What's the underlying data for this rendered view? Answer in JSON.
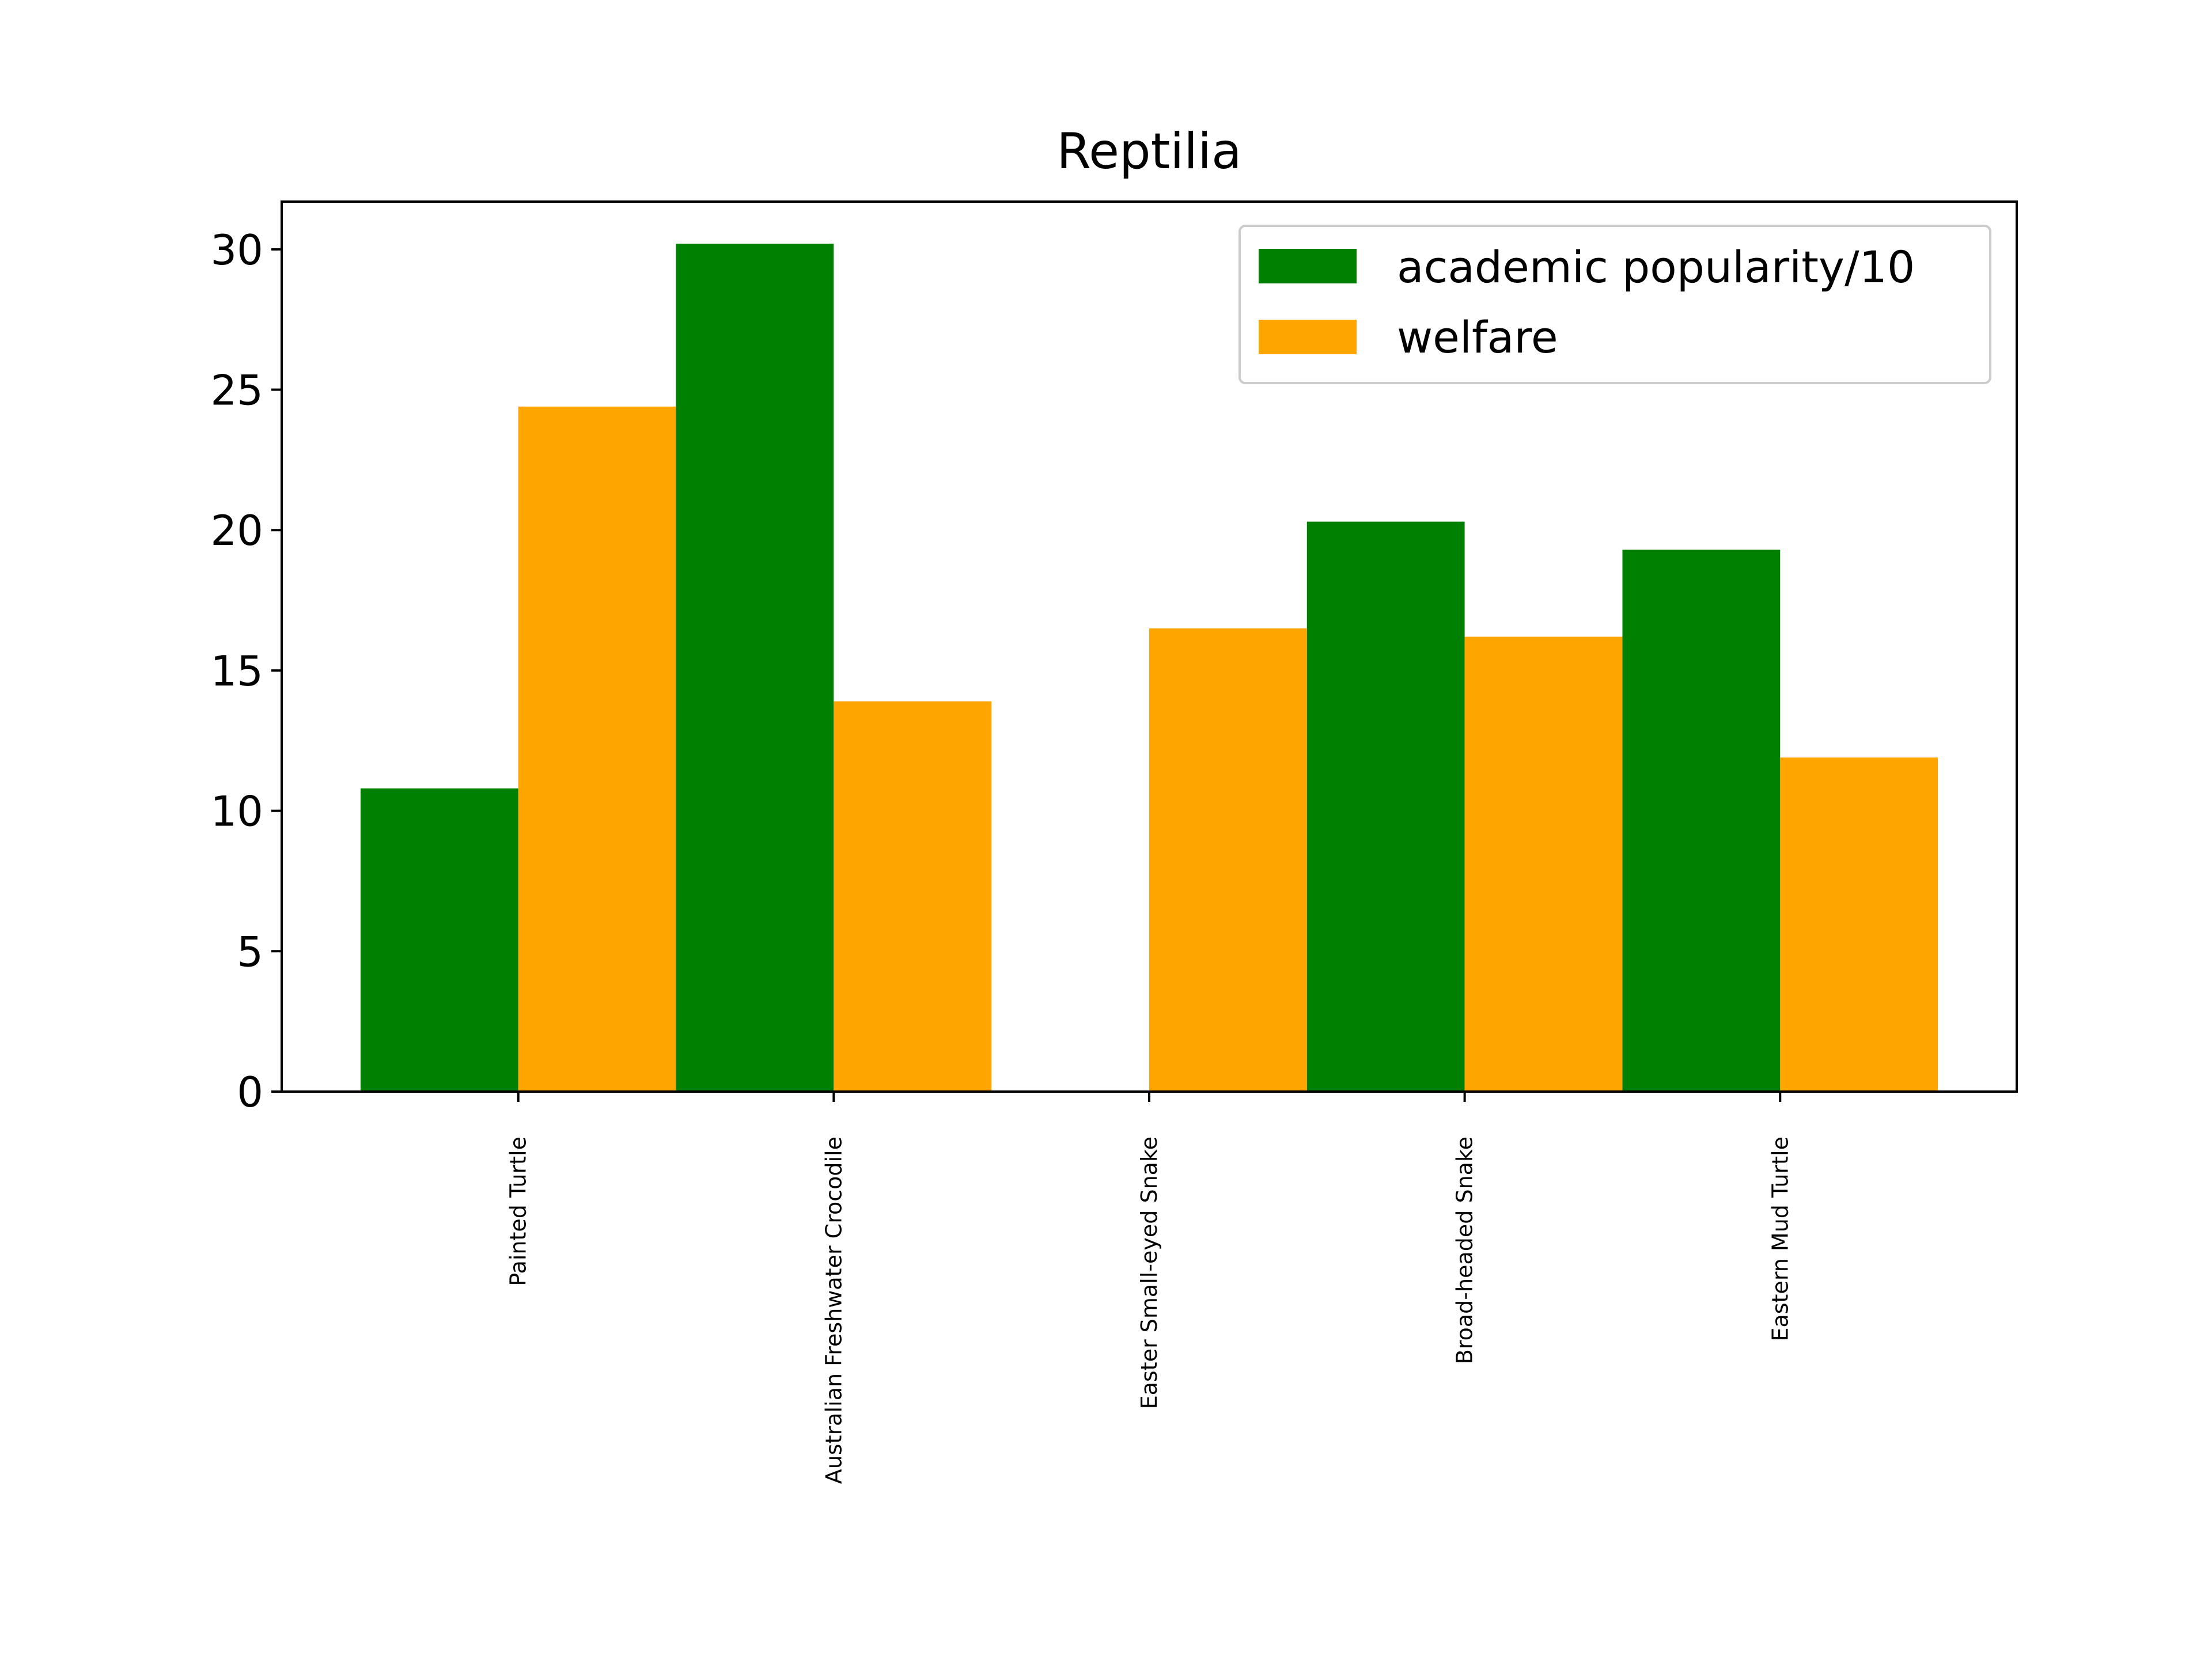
{
  "chart_data": {
    "type": "bar",
    "title": "Reptilia",
    "xlabel": "",
    "ylabel": "",
    "categories": [
      "Painted Turtle",
      "Australian Freshwater Crocodile",
      "Easter Small-eyed Snake",
      "Broad-headed Snake",
      "Eastern Mud Turtle"
    ],
    "series": [
      {
        "name": "academic popularity/10",
        "color": "#008000",
        "values": [
          10.8,
          30.2,
          0,
          20.3,
          19.3
        ]
      },
      {
        "name": "welfare",
        "color": "#ffa500",
        "values": [
          24.4,
          13.9,
          16.5,
          16.2,
          11.9
        ]
      }
    ],
    "ylim": [
      0,
      31.7
    ],
    "yticks": [
      "0",
      "5",
      "10",
      "15",
      "20",
      "25",
      "30"
    ],
    "grid": false,
    "legend_position": "top-right"
  }
}
